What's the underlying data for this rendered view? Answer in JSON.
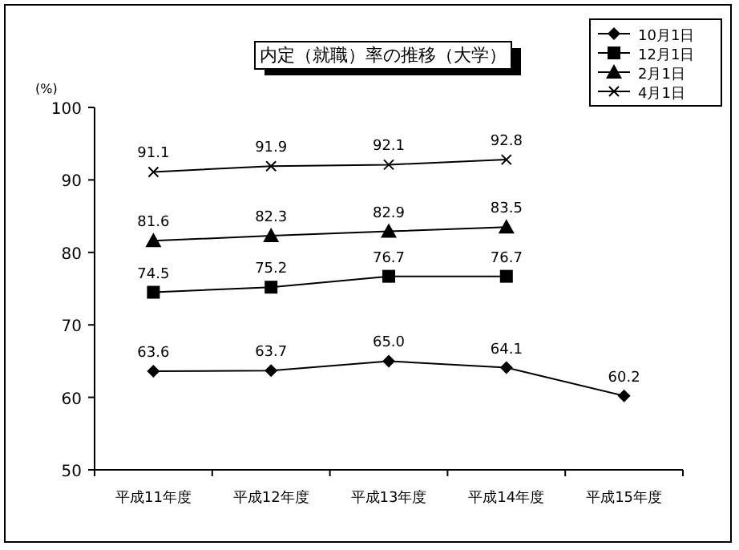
{
  "chart_data": {
    "type": "line",
    "title": "内定（就職）率の推移（大学）",
    "ylabel": "(%)",
    "categories": [
      "平成11年度",
      "平成12年度",
      "平成13年度",
      "平成14年度",
      "平成15年度"
    ],
    "series": [
      {
        "name": "10月1日",
        "color": "#000000",
        "marker": "diamond",
        "values": [
          63.6,
          63.7,
          65.0,
          64.1,
          60.2
        ],
        "value_labels": [
          "63.6",
          "63.7",
          "65.0",
          "64.1",
          "60.2"
        ]
      },
      {
        "name": "12月1日",
        "color": "#000000",
        "marker": "square",
        "values": [
          74.5,
          75.2,
          76.7,
          76.7,
          null
        ],
        "value_labels": [
          "74.5",
          "75.2",
          "76.7",
          "76.7",
          null
        ]
      },
      {
        "name": "2月1日",
        "color": "#000000",
        "marker": "triangle",
        "values": [
          81.6,
          82.3,
          82.9,
          83.5,
          null
        ],
        "value_labels": [
          "81.6",
          "82.3",
          "82.9",
          "83.5",
          null
        ]
      },
      {
        "name": "4月1日",
        "color": "#000000",
        "marker": "cross",
        "values": [
          91.1,
          91.9,
          92.1,
          92.8,
          null
        ],
        "value_labels": [
          "91.1",
          "91.9",
          "92.1",
          "92.8",
          null
        ]
      }
    ],
    "ylim": [
      50,
      100
    ],
    "yticks": [
      50,
      60,
      70,
      80,
      90,
      100
    ],
    "grid": false,
    "legend": "top right",
    "line_style": "solid"
  }
}
